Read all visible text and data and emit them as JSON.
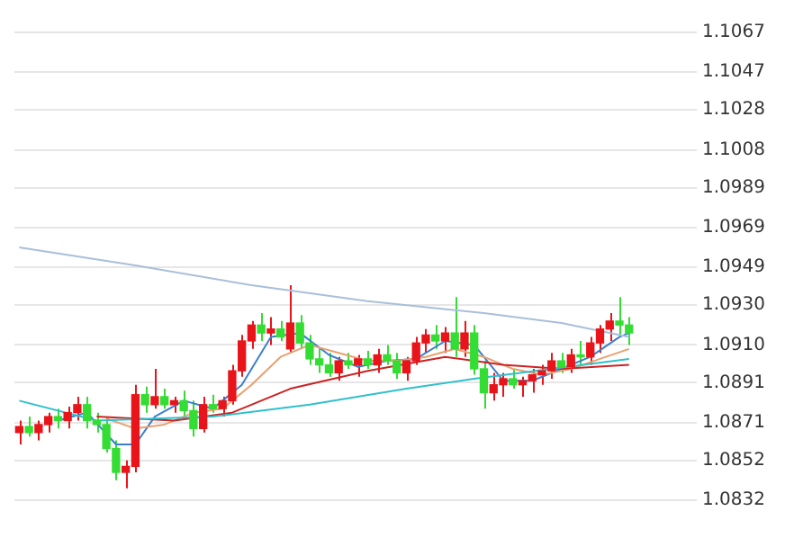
{
  "chart_data": {
    "type": "candlestick",
    "categories": [
      null,
      null,
      null,
      null,
      null,
      null,
      null,
      null,
      null,
      null,
      null,
      null,
      null,
      null,
      null,
      null,
      null,
      null,
      null,
      null,
      null,
      null,
      null,
      null,
      null,
      null,
      null,
      null,
      null,
      null,
      null,
      null,
      null,
      null,
      null,
      null,
      null,
      null,
      null,
      null,
      null,
      null,
      null,
      null,
      null,
      null,
      null,
      null,
      null,
      null,
      null,
      null,
      null,
      null,
      null,
      null,
      null,
      null,
      null,
      null,
      null,
      null,
      null,
      null
    ],
    "ohlc": [
      [
        1.0866,
        1.0872,
        1.086,
        1.0869
      ],
      [
        1.0869,
        1.0874,
        1.0864,
        1.0866
      ],
      [
        1.0866,
        1.0872,
        1.0862,
        1.087
      ],
      [
        1.087,
        1.0876,
        1.0866,
        1.0874
      ],
      [
        1.0874,
        1.0878,
        1.0868,
        1.0872
      ],
      [
        1.0872,
        1.0879,
        1.0868,
        1.0876
      ],
      [
        1.0876,
        1.0884,
        1.0872,
        1.088
      ],
      [
        1.088,
        1.0884,
        1.0868,
        1.0872
      ],
      [
        1.0872,
        1.0876,
        1.0866,
        1.087
      ],
      [
        1.087,
        1.0874,
        1.0856,
        1.0858
      ],
      [
        1.0858,
        1.0862,
        1.0842,
        1.0846
      ],
      [
        1.0846,
        1.0852,
        1.0838,
        1.0849
      ],
      [
        1.0849,
        1.089,
        1.0846,
        1.0885
      ],
      [
        1.0885,
        1.0889,
        1.0876,
        1.088
      ],
      [
        1.088,
        1.0898,
        1.0878,
        1.0884
      ],
      [
        1.0884,
        1.0888,
        1.0878,
        1.088
      ],
      [
        1.088,
        1.0884,
        1.0876,
        1.0882
      ],
      [
        1.0882,
        1.0887,
        1.0874,
        1.0877
      ],
      [
        1.0877,
        1.0882,
        1.0864,
        1.0868
      ],
      [
        1.0868,
        1.0884,
        1.0866,
        1.088
      ],
      [
        1.088,
        1.0885,
        1.0876,
        1.0878
      ],
      [
        1.0878,
        1.0884,
        1.0874,
        1.0882
      ],
      [
        1.0882,
        1.09,
        1.088,
        1.0897
      ],
      [
        1.0897,
        1.0915,
        1.0894,
        1.0912
      ],
      [
        1.0912,
        1.0922,
        1.0908,
        1.092
      ],
      [
        1.092,
        1.0926,
        1.0912,
        1.0916
      ],
      [
        1.0916,
        1.0924,
        1.091,
        1.0918
      ],
      [
        1.0918,
        1.0922,
        1.0912,
        1.0914
      ],
      [
        1.0908,
        1.094,
        1.0906,
        1.0921
      ],
      [
        1.0921,
        1.0925,
        1.0908,
        1.0911
      ],
      [
        1.0911,
        1.0915,
        1.09,
        1.0903
      ],
      [
        1.0903,
        1.0908,
        1.0896,
        1.09
      ],
      [
        1.09,
        1.0906,
        1.0894,
        1.0896
      ],
      [
        1.0896,
        1.0904,
        1.0892,
        1.0902
      ],
      [
        1.0902,
        1.0906,
        1.0898,
        1.09
      ],
      [
        1.09,
        1.0905,
        1.0894,
        1.0903
      ],
      [
        1.0903,
        1.0907,
        1.0898,
        1.09
      ],
      [
        1.09,
        1.0908,
        1.0896,
        1.0905
      ],
      [
        1.0905,
        1.091,
        1.09,
        1.0902
      ],
      [
        1.0902,
        1.0906,
        1.0893,
        1.0896
      ],
      [
        1.0896,
        1.0904,
        1.0892,
        1.0902
      ],
      [
        1.0902,
        1.0914,
        1.09,
        1.0911
      ],
      [
        1.0911,
        1.0918,
        1.0906,
        1.0915
      ],
      [
        1.0915,
        1.092,
        1.0908,
        1.0912
      ],
      [
        1.0912,
        1.0919,
        1.0906,
        1.0916
      ],
      [
        1.0916,
        1.0934,
        1.0904,
        1.0908
      ],
      [
        1.0908,
        1.0922,
        1.0904,
        1.0916
      ],
      [
        1.0916,
        1.092,
        1.0895,
        1.0898
      ],
      [
        1.0898,
        1.0902,
        1.0878,
        1.0886
      ],
      [
        1.0886,
        1.0896,
        1.0882,
        1.089
      ],
      [
        1.089,
        1.0896,
        1.0884,
        1.0893
      ],
      [
        1.0893,
        1.0898,
        1.0888,
        1.089
      ],
      [
        1.089,
        1.0894,
        1.0884,
        1.0892
      ],
      [
        1.0892,
        1.0898,
        1.0886,
        1.0895
      ],
      [
        1.0895,
        1.09,
        1.089,
        1.0897
      ],
      [
        1.0897,
        1.0906,
        1.0893,
        1.0902
      ],
      [
        1.0902,
        1.0906,
        1.0896,
        1.0899
      ],
      [
        1.0899,
        1.0908,
        1.0896,
        1.0905
      ],
      [
        1.0905,
        1.0912,
        1.09,
        1.0904
      ],
      [
        1.0904,
        1.0914,
        1.09,
        1.0911
      ],
      [
        1.0911,
        1.092,
        1.0906,
        1.0918
      ],
      [
        1.0918,
        1.0926,
        1.0912,
        1.0922
      ],
      [
        1.0922,
        1.0934,
        1.0914,
        1.092
      ],
      [
        1.092,
        1.0924,
        1.091,
        1.0916
      ]
    ],
    "colors": [
      "#e8141a",
      "#33dd33",
      "#e8141a",
      "#e8141a",
      "#33dd33",
      "#e8141a",
      "#e8141a",
      "#33dd33",
      "#33dd33",
      "#33dd33",
      "#33dd33",
      "#e8141a",
      "#e8141a",
      "#33dd33",
      "#e8141a",
      "#33dd33",
      "#e8141a",
      "#33dd33",
      "#33dd33",
      "#e8141a",
      "#33dd33",
      "#e8141a",
      "#e8141a",
      "#e8141a",
      "#e8141a",
      "#33dd33",
      "#e8141a",
      "#33dd33",
      "#e8141a",
      "#33dd33",
      "#33dd33",
      "#33dd33",
      "#33dd33",
      "#e8141a",
      "#33dd33",
      "#e8141a",
      "#33dd33",
      "#e8141a",
      "#33dd33",
      "#33dd33",
      "#e8141a",
      "#e8141a",
      "#e8141a",
      "#33dd33",
      "#e8141a",
      "#33dd33",
      "#e8141a",
      "#33dd33",
      "#33dd33",
      "#e8141a",
      "#e8141a",
      "#33dd33",
      "#e8141a",
      "#e8141a",
      "#e8141a",
      "#e8141a",
      "#33dd33",
      "#e8141a",
      "#33dd33",
      "#e8141a",
      "#e8141a",
      "#e8141a",
      "#33dd33",
      "#33dd33"
    ],
    "series": [
      {
        "type": "line",
        "color": "#a9bfd9",
        "values": [
          1.0959,
          null,
          null,
          null,
          null,
          null,
          null,
          null,
          null,
          null,
          null,
          null,
          1.095,
          null,
          null,
          null,
          null,
          null,
          null,
          null,
          null,
          null,
          null,
          null,
          1.094,
          null,
          null,
          null,
          null,
          null,
          null,
          null,
          null,
          null,
          null,
          null,
          1.0932,
          null,
          null,
          null,
          null,
          null,
          null,
          null,
          null,
          null,
          null,
          null,
          1.0926,
          null,
          null,
          null,
          null,
          null,
          null,
          null,
          1.0921,
          null,
          null,
          null,
          null,
          null,
          null,
          1.0914
        ]
      },
      {
        "type": "line",
        "color": "#30c0cc",
        "values": [
          1.0882,
          null,
          null,
          null,
          null,
          null,
          null,
          null,
          1.0872,
          null,
          null,
          null,
          null,
          null,
          null,
          null,
          null,
          null,
          null,
          null,
          1.0874,
          null,
          null,
          null,
          null,
          null,
          null,
          null,
          null,
          null,
          1.088,
          null,
          null,
          null,
          null,
          null,
          null,
          null,
          null,
          null,
          1.0888,
          null,
          null,
          null,
          null,
          null,
          null,
          1.0893,
          null,
          null,
          null,
          null,
          null,
          null,
          null,
          1.0898,
          null,
          null,
          null,
          null,
          null,
          null,
          null,
          1.0903
        ]
      },
      {
        "type": "line",
        "color": "#cc2222",
        "values": [
          null,
          null,
          null,
          null,
          null,
          null,
          null,
          null,
          1.0874,
          null,
          null,
          null,
          null,
          null,
          null,
          null,
          1.0872,
          null,
          null,
          null,
          null,
          null,
          1.0876,
          null,
          null,
          null,
          null,
          null,
          1.0888,
          null,
          null,
          null,
          null,
          null,
          null,
          null,
          1.0897,
          null,
          null,
          null,
          null,
          null,
          null,
          null,
          1.0904,
          null,
          null,
          null,
          null,
          null,
          1.09,
          null,
          null,
          null,
          null,
          null,
          1.0898,
          null,
          null,
          null,
          null,
          null,
          null,
          1.09
        ]
      },
      {
        "type": "line",
        "color": "#e8a070",
        "values": [
          null,
          null,
          null,
          null,
          null,
          null,
          null,
          null,
          null,
          1.0873,
          null,
          null,
          1.0868,
          null,
          null,
          1.087,
          null,
          null,
          1.0876,
          null,
          null,
          1.0878,
          null,
          null,
          1.089,
          null,
          null,
          1.0904,
          null,
          null,
          1.091,
          null,
          null,
          1.0906,
          null,
          null,
          1.0902,
          null,
          null,
          1.0902,
          null,
          null,
          1.0904,
          null,
          null,
          1.0908,
          null,
          null,
          1.0904,
          null,
          null,
          1.0898,
          null,
          null,
          1.0895,
          null,
          null,
          1.0898,
          null,
          null,
          1.0903,
          null,
          null,
          1.0908
        ]
      },
      {
        "type": "line",
        "color": "#3b7fd0",
        "values": [
          null,
          null,
          null,
          null,
          1.0872,
          null,
          null,
          1.0876,
          null,
          null,
          1.086,
          null,
          1.086,
          null,
          1.0874,
          null,
          null,
          1.0882,
          null,
          null,
          1.0878,
          null,
          null,
          1.089,
          null,
          null,
          1.0914,
          null,
          null,
          1.0916,
          null,
          null,
          1.0905,
          null,
          null,
          1.0899,
          null,
          null,
          1.0902,
          null,
          null,
          1.0903,
          null,
          null,
          1.0912,
          null,
          null,
          1.091,
          null,
          null,
          1.0892,
          null,
          null,
          1.0892,
          null,
          null,
          1.0898,
          null,
          null,
          1.0904,
          null,
          null,
          1.0914,
          1.0916
        ]
      }
    ],
    "ylim": [
      1.0832,
      1.1067
    ],
    "yticks": [
      {
        "value": 1.1067,
        "label": "1.1067"
      },
      {
        "value": 1.1047,
        "label": "1.1047"
      },
      {
        "value": 1.1028,
        "label": "1.1028"
      },
      {
        "value": 1.1008,
        "label": "1.1008"
      },
      {
        "value": 1.0989,
        "label": "1.0989"
      },
      {
        "value": 1.0969,
        "label": "1.0969"
      },
      {
        "value": 1.0949,
        "label": "1.0949"
      },
      {
        "value": 1.093,
        "label": "1.0930"
      },
      {
        "value": 1.091,
        "label": "1.0910"
      },
      {
        "value": 1.0891,
        "label": "1.0891"
      },
      {
        "value": 1.0871,
        "label": "1.0871"
      },
      {
        "value": 1.0852,
        "label": "1.0852"
      },
      {
        "value": 1.0832,
        "label": "1.0832"
      }
    ],
    "grid": "y",
    "tick_labels": "y"
  }
}
